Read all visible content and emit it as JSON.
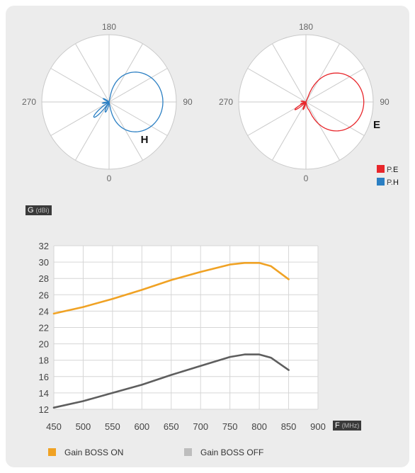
{
  "polar_charts": [
    {
      "series_name": "P.H",
      "pattern_label": "H",
      "color": "#2b7fc3",
      "angle_labels": {
        "top": "180",
        "right": "90",
        "bottom": "0",
        "left": "270"
      },
      "direction_of_max_deg": 90
    },
    {
      "series_name": "P.E",
      "pattern_label": "E",
      "color": "#e8262b",
      "angle_labels": {
        "top": "180",
        "right": "90",
        "bottom": "0",
        "left": "270"
      },
      "direction_of_max_deg": 90
    }
  ],
  "polar_legend": [
    {
      "prefix": "P.",
      "letter": "E",
      "color": "#e8262b"
    },
    {
      "prefix": "P.",
      "letter": "H",
      "color": "#2b7fc3"
    }
  ],
  "chart_data": {
    "type": "line",
    "ylabel": "G",
    "ylabel_unit": "(dBi)",
    "xlabel": "F",
    "xlabel_unit": "(MHz)",
    "ylim": [
      12,
      32
    ],
    "xlim": [
      450,
      900
    ],
    "yticks": [
      12,
      14,
      16,
      18,
      20,
      22,
      24,
      26,
      28,
      30,
      32
    ],
    "xticks": [
      450,
      500,
      550,
      600,
      650,
      700,
      750,
      800,
      850,
      900
    ],
    "grid": true,
    "legend_placement": "bottom",
    "x": [
      450,
      500,
      550,
      600,
      650,
      700,
      750,
      775,
      800,
      820,
      850
    ],
    "series": [
      {
        "name": "Gain BOSS ON",
        "color": "#f0a224",
        "values": [
          23.7,
          24.5,
          25.5,
          26.6,
          27.8,
          28.8,
          29.7,
          29.9,
          29.9,
          29.5,
          27.9
        ]
      },
      {
        "name": "Gain BOSS OFF",
        "color": "#5e5e5e",
        "values": [
          12.2,
          13.0,
          14.0,
          15.0,
          16.2,
          17.3,
          18.4,
          18.7,
          18.7,
          18.3,
          16.8
        ]
      }
    ]
  }
}
